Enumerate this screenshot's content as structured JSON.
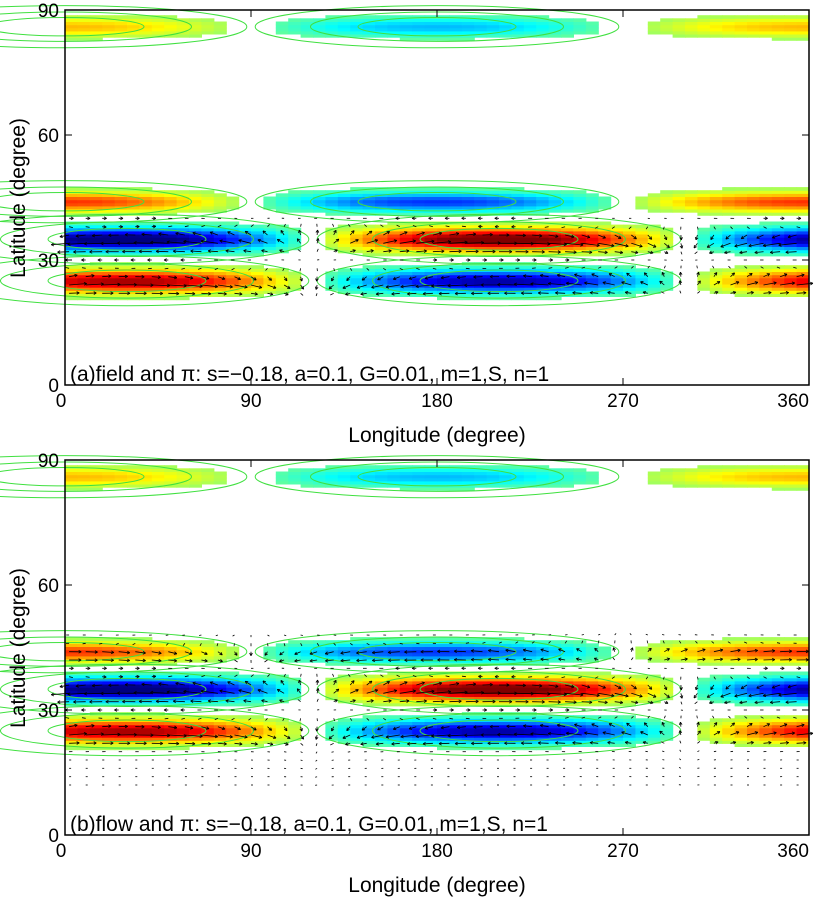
{
  "chart_data": [
    {
      "type": "heatmap",
      "panel": "a",
      "annotation": "(a)field and π: s=−0.18, a=0.1, G=0.01, m=1,S, n=1",
      "xlabel": "Longitude (degree)",
      "ylabel": "Latitude (degree)",
      "xlim": [
        0,
        360
      ],
      "ylim": [
        0,
        90
      ],
      "xticks": [
        "0",
        "90",
        "180",
        "270",
        "360"
      ],
      "yticks": [
        "0",
        "30",
        "60",
        "90"
      ],
      "overlay": "vector arrows",
      "bands": [
        {
          "lat": 86,
          "width": 2.2,
          "amp": 0.35,
          "phase": 0
        },
        {
          "lat": 44,
          "width": 2.2,
          "amp": 0.6,
          "phase": 0
        },
        {
          "lat": 35,
          "width": 2.6,
          "amp": 1.0,
          "phase": 210
        },
        {
          "lat": 25,
          "width": 2.6,
          "amp": 0.85,
          "phase": 30
        }
      ],
      "arrow_region": {
        "lat_min": 22,
        "lat_max": 40
      },
      "arrow_grid": {
        "lon_step": 8,
        "lat_step": 2
      }
    },
    {
      "type": "heatmap",
      "panel": "b",
      "annotation": "(b)flow and π: s=−0.18, a=0.1, G=0.01, m=1,S, n=1",
      "xlabel": "Longitude (degree)",
      "ylabel": "Latitude (degree)",
      "xlim": [
        0,
        360
      ],
      "ylim": [
        0,
        90
      ],
      "xticks": [
        "0",
        "90",
        "180",
        "270",
        "360"
      ],
      "yticks": [
        "0",
        "30",
        "60",
        "90"
      ],
      "overlay": "vector arrows",
      "bands": [
        {
          "lat": 86,
          "width": 2.2,
          "amp": 0.35,
          "phase": 0
        },
        {
          "lat": 44,
          "width": 2.2,
          "amp": 0.6,
          "phase": 0
        },
        {
          "lat": 35,
          "width": 2.6,
          "amp": 1.0,
          "phase": 210
        },
        {
          "lat": 25,
          "width": 2.6,
          "amp": 0.85,
          "phase": 30
        }
      ],
      "arrow_region": {
        "lat_min": 12,
        "lat_max": 48
      },
      "arrow_grid": {
        "lon_step": 8,
        "lat_step": 2
      }
    }
  ],
  "colors": {
    "positive": "#b00000",
    "negative": "#000090",
    "contour": "#40e040",
    "arrow": "#000000"
  }
}
